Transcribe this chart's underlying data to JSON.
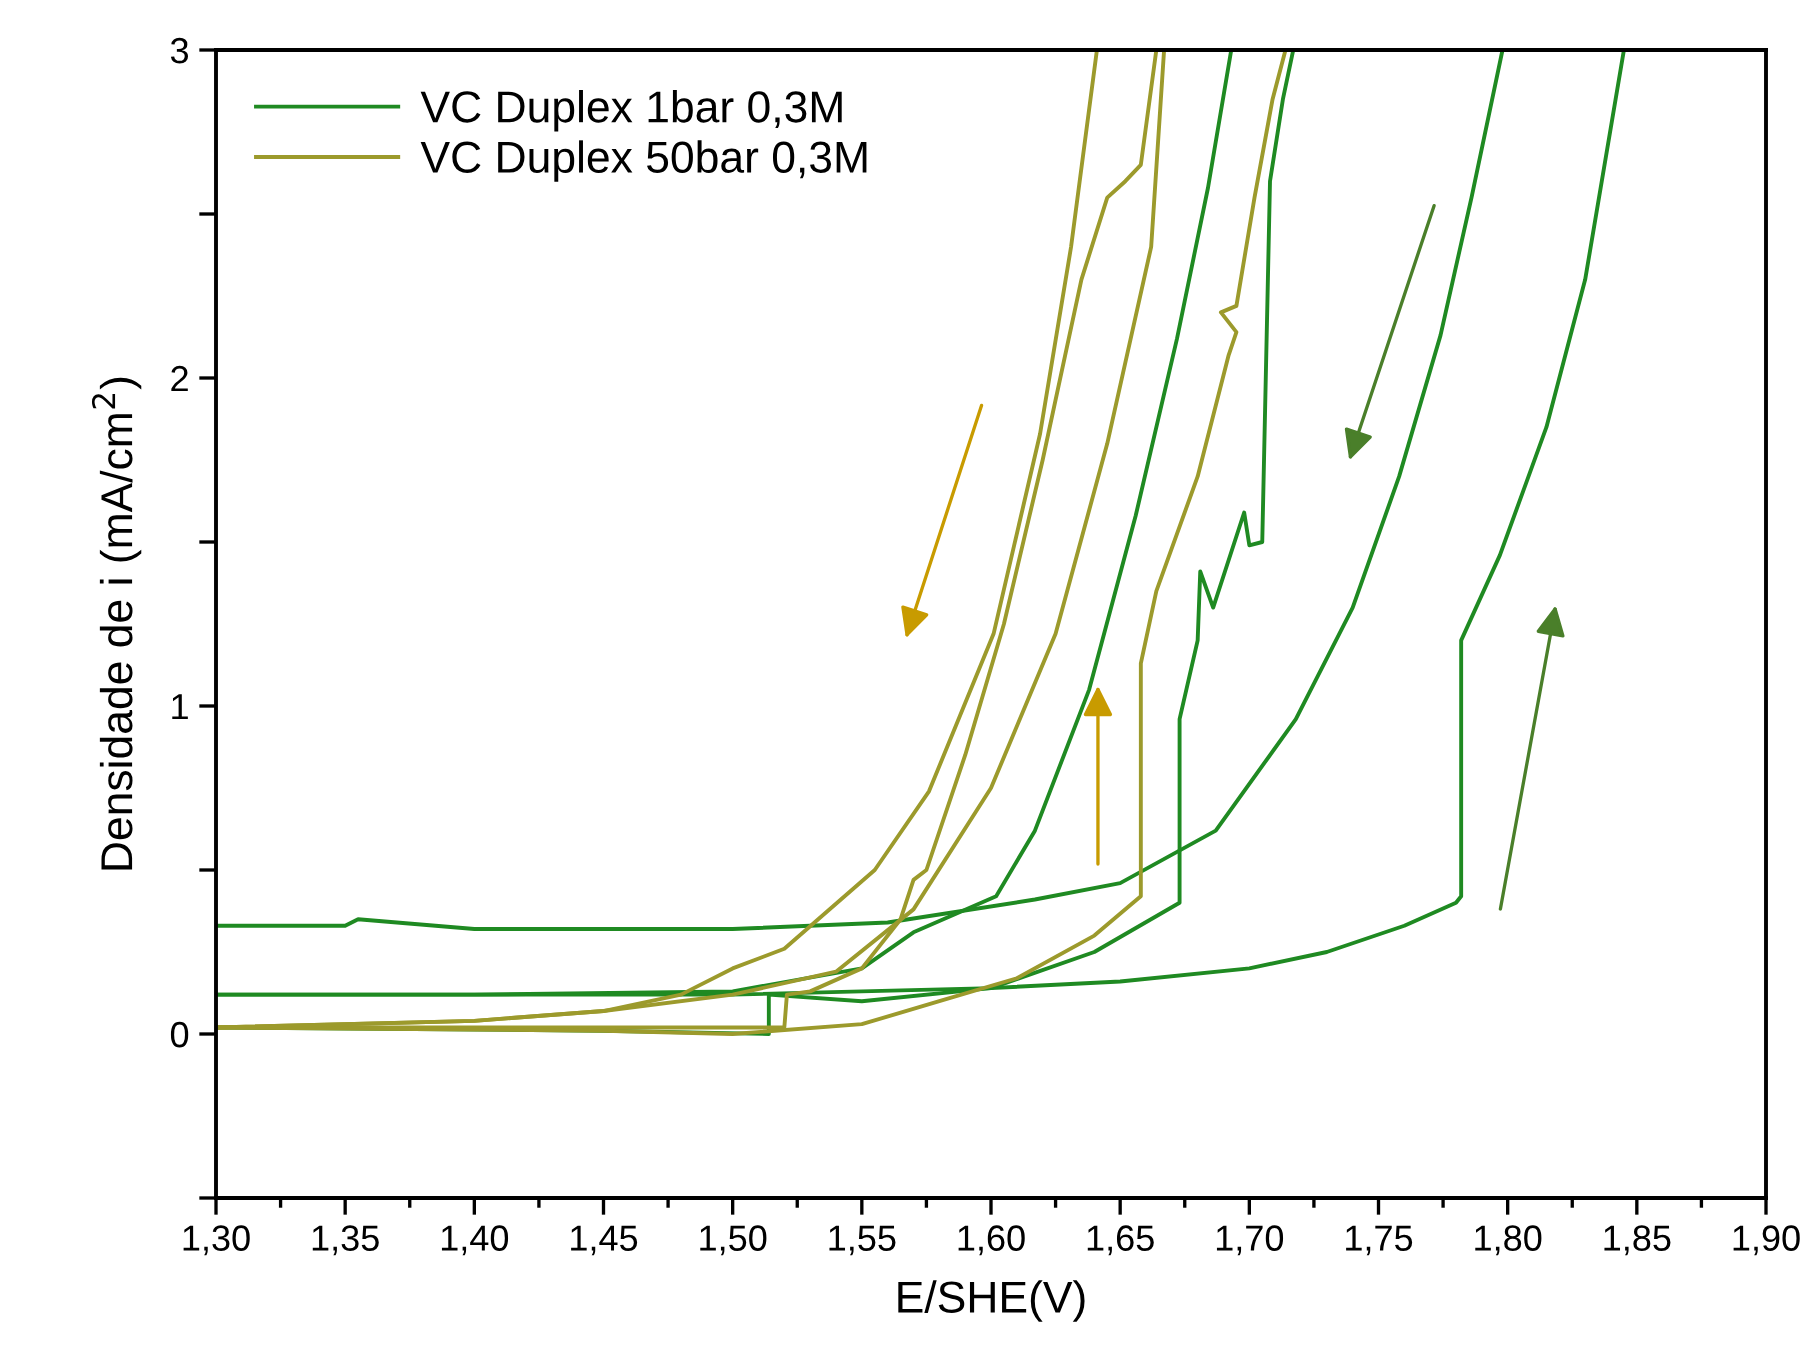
{
  "chart_data": {
    "type": "line",
    "xlabel": "E/SHE(V)",
    "ylabel": "Densidade de i (mA/cm$^{2}$)",
    "xlim": [
      1.3,
      1.9
    ],
    "ylim": [
      -0.5,
      3
    ],
    "xticks": [
      {
        "value": 1.3,
        "label": "1,30"
      },
      {
        "value": 1.325,
        "label": null
      },
      {
        "value": 1.35,
        "label": "1,35"
      },
      {
        "value": 1.375,
        "label": null
      },
      {
        "value": 1.4,
        "label": "1,40"
      },
      {
        "value": 1.425,
        "label": null
      },
      {
        "value": 1.45,
        "label": "1,45"
      },
      {
        "value": 1.475,
        "label": null
      },
      {
        "value": 1.5,
        "label": "1,50"
      },
      {
        "value": 1.525,
        "label": null
      },
      {
        "value": 1.55,
        "label": "1,55"
      },
      {
        "value": 1.575,
        "label": null
      },
      {
        "value": 1.6,
        "label": "1,60"
      },
      {
        "value": 1.625,
        "label": null
      },
      {
        "value": 1.65,
        "label": "1,65"
      },
      {
        "value": 1.675,
        "label": null
      },
      {
        "value": 1.7,
        "label": "1,70"
      },
      {
        "value": 1.725,
        "label": null
      },
      {
        "value": 1.75,
        "label": "1,75"
      },
      {
        "value": 1.775,
        "label": null
      },
      {
        "value": 1.8,
        "label": "1,80"
      },
      {
        "value": 1.825,
        "label": null
      },
      {
        "value": 1.85,
        "label": "1,85"
      },
      {
        "value": 1.875,
        "label": null
      },
      {
        "value": 1.9,
        "label": "1,90"
      }
    ],
    "yticks": [
      {
        "value": -0.5,
        "label": null
      },
      0,
      {
        "value": 0.5,
        "label": null
      },
      1,
      {
        "value": 1.5,
        "label": null
      },
      2,
      {
        "value": 2.5,
        "label": null
      },
      3
    ],
    "grid": false,
    "legend": "top left",
    "marker": "none",
    "line_style": "solid",
    "series": [
      {
        "name": "VC Duplex 1bar 0,3M",
        "color": "#1f8a22",
        "x": [
          1.3,
          1.4,
          1.5,
          1.6,
          1.65,
          1.7,
          1.73,
          1.76,
          1.78,
          1.782,
          1.782,
          1.797,
          1.815,
          1.83,
          1.845
        ],
        "values": [
          0.12,
          0.12,
          0.12,
          0.14,
          0.16,
          0.2,
          0.25,
          0.33,
          0.4,
          0.42,
          1.2,
          1.46,
          1.85,
          2.3,
          3
        ]
      },
      {
        "color": "#1f8a22",
        "x": [
          1.798,
          1.786,
          1.774,
          1.758,
          1.74,
          1.718,
          1.687,
          1.65,
          1.617,
          1.56,
          1.5,
          1.4,
          1.355,
          1.35,
          1.3
        ],
        "values": [
          3,
          2.55,
          2.13,
          1.7,
          1.3,
          0.96,
          0.62,
          0.46,
          0.41,
          0.34,
          0.32,
          0.32,
          0.35,
          0.33,
          0.33
        ]
      },
      {
        "color": "#1f8a22",
        "x": [
          1.3,
          1.45,
          1.514,
          1.514,
          1.55,
          1.6,
          1.64,
          1.673,
          1.673,
          1.68,
          1.681,
          1.686,
          1.698,
          1.7,
          1.705,
          1.708,
          1.713,
          1.717
        ],
        "values": [
          0.02,
          0.01,
          0.0,
          0.12,
          0.1,
          0.14,
          0.25,
          0.4,
          0.96,
          1.2,
          1.41,
          1.3,
          1.59,
          1.49,
          1.5,
          2.6,
          2.85,
          3
        ]
      },
      {
        "color": "#1f8a22",
        "x": [
          1.693,
          1.684,
          1.672,
          1.656,
          1.638,
          1.617,
          1.602,
          1.57,
          1.55,
          1.5,
          1.4,
          1.3
        ],
        "values": [
          3,
          2.58,
          2.12,
          1.58,
          1.05,
          0.62,
          0.42,
          0.31,
          0.2,
          0.13,
          0.12,
          0.12
        ]
      },
      {
        "name": "VC Duplex 50bar 0,3M",
        "color": "#9c9a2c",
        "x": [
          1.3,
          1.4,
          1.52,
          1.521,
          1.53,
          1.55,
          1.565,
          1.57,
          1.575,
          1.59,
          1.605,
          1.62,
          1.635,
          1.645,
          1.652,
          1.658,
          1.664
        ],
        "values": [
          0.02,
          0.02,
          0.02,
          0.12,
          0.13,
          0.2,
          0.35,
          0.47,
          0.5,
          0.85,
          1.25,
          1.75,
          2.3,
          2.55,
          2.6,
          2.65,
          3
        ]
      },
      {
        "color": "#9c9a2c",
        "x": [
          1.667,
          1.662,
          1.645,
          1.625,
          1.6,
          1.57,
          1.54,
          1.5,
          1.45,
          1.4,
          1.3
        ],
        "values": [
          3,
          2.4,
          1.8,
          1.22,
          0.75,
          0.38,
          0.19,
          0.12,
          0.07,
          0.04,
          0.02
        ]
      },
      {
        "color": "#9c9a2c",
        "x": [
          1.641,
          1.631,
          1.619,
          1.601,
          1.576,
          1.555,
          1.52,
          1.5,
          1.48,
          1.45,
          1.4,
          1.3
        ],
        "values": [
          3,
          2.4,
          1.83,
          1.22,
          0.74,
          0.5,
          0.26,
          0.2,
          0.12,
          0.07,
          0.04,
          0.02
        ]
      },
      {
        "color": "#9c9a2c",
        "x": [
          1.3,
          1.45,
          1.5,
          1.55,
          1.58,
          1.61,
          1.64,
          1.655,
          1.658,
          1.658,
          1.664,
          1.68,
          1.692,
          1.695,
          1.689,
          1.695,
          1.702,
          1.709,
          1.714
        ],
        "values": [
          0.02,
          0.01,
          0.0,
          0.03,
          0.1,
          0.17,
          0.3,
          0.4,
          0.42,
          1.13,
          1.35,
          1.7,
          2.07,
          2.14,
          2.2,
          2.22,
          2.55,
          2.85,
          3
        ]
      }
    ]
  }
}
